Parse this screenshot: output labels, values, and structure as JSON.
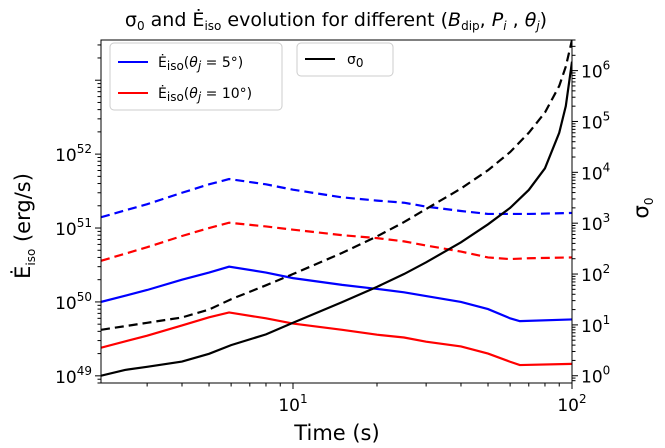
{
  "chart_data": {
    "type": "line",
    "title": "σ0 and Ėiso evolution for different (Bdip, Pi, θj)",
    "xlabel": "Time (s)",
    "ylabel_left": "Ėiso (erg/s)",
    "ylabel_right": "σ0",
    "x_scale": "log",
    "y_scale_left": "log",
    "y_scale_right": "log",
    "xlim": [
      2.05,
      100
    ],
    "ylim_left": [
      8e+48,
      3.5e+53
    ],
    "ylim_right": [
      0.72,
      4000000.0
    ],
    "x_ticks": [
      {
        "value": 10,
        "label": "10",
        "exp": "1"
      },
      {
        "value": 100,
        "label": "10",
        "exp": "2"
      }
    ],
    "y_ticks_left": [
      {
        "value": 1e+49,
        "label": "10",
        "exp": "49"
      },
      {
        "value": 1e+50,
        "label": "10",
        "exp": "50"
      },
      {
        "value": 1e+51,
        "label": "10",
        "exp": "51"
      },
      {
        "value": 1e+52,
        "label": "10",
        "exp": "52"
      }
    ],
    "y_ticks_right": [
      {
        "value": 1,
        "label": "10",
        "exp": "0"
      },
      {
        "value": 10,
        "label": "10",
        "exp": "1"
      },
      {
        "value": 100,
        "label": "10",
        "exp": "2"
      },
      {
        "value": 1000,
        "label": "10",
        "exp": "3"
      },
      {
        "value": 10000,
        "label": "10",
        "exp": "4"
      },
      {
        "value": 100000,
        "label": "10",
        "exp": "5"
      },
      {
        "value": 1000000,
        "label": "10",
        "exp": "6"
      }
    ],
    "legend_left": {
      "placement": "upper-left",
      "entries": [
        {
          "label": "Ėiso(θj = 5°)",
          "color": "#0000ff"
        },
        {
          "label": "Ėiso(θj = 10°)",
          "color": "#ff0000"
        }
      ]
    },
    "legend_right": {
      "placement": "upper-center",
      "entries": [
        {
          "label": "σ0",
          "color": "#000000"
        }
      ]
    },
    "series": [
      {
        "axis": "left",
        "color": "#0000ff",
        "dash": "dashed",
        "points": [
          [
            2.05,
            1.4e+51
          ],
          [
            3,
            2.1e+51
          ],
          [
            4,
            3e+51
          ],
          [
            5,
            3.9e+51
          ],
          [
            5.9,
            4.6e+51
          ],
          [
            8,
            3.9e+51
          ],
          [
            10,
            3.3e+51
          ],
          [
            15,
            2.6e+51
          ],
          [
            20,
            2.35e+51
          ],
          [
            25,
            2.2e+51
          ],
          [
            30,
            1.95e+51
          ],
          [
            40,
            1.7e+51
          ],
          [
            50,
            1.55e+51
          ],
          [
            60,
            1.55e+51
          ],
          [
            70,
            1.55e+51
          ],
          [
            100,
            1.6e+51
          ]
        ]
      },
      {
        "axis": "left",
        "color": "#ff0000",
        "dash": "dashed",
        "points": [
          [
            2.05,
            3.6e+50
          ],
          [
            3,
            5.5e+50
          ],
          [
            4,
            7.8e+50
          ],
          [
            5,
            1e+51
          ],
          [
            5.9,
            1.18e+51
          ],
          [
            8,
            1.05e+51
          ],
          [
            10,
            9.5e+50
          ],
          [
            15,
            8e+50
          ],
          [
            20,
            7.3e+50
          ],
          [
            25,
            6.6e+50
          ],
          [
            30,
            5.8e+50
          ],
          [
            40,
            4.8e+50
          ],
          [
            50,
            4e+50
          ],
          [
            60,
            3.8e+50
          ],
          [
            70,
            3.9e+50
          ],
          [
            100,
            4e+50
          ]
        ]
      },
      {
        "axis": "left",
        "color": "#0000ff",
        "dash": "solid",
        "points": [
          [
            2.05,
            1e+50
          ],
          [
            3,
            1.45e+50
          ],
          [
            4,
            2e+50
          ],
          [
            5,
            2.5e+50
          ],
          [
            5.9,
            3e+50
          ],
          [
            8,
            2.5e+50
          ],
          [
            10,
            2.1e+50
          ],
          [
            15,
            1.7e+50
          ],
          [
            20,
            1.5e+50
          ],
          [
            25,
            1.35e+50
          ],
          [
            30,
            1.2e+50
          ],
          [
            40,
            1e+50
          ],
          [
            50,
            8e+49
          ],
          [
            60,
            6e+49
          ],
          [
            65,
            5.5e+49
          ],
          [
            100,
            5.8e+49
          ]
        ]
      },
      {
        "axis": "left",
        "color": "#ff0000",
        "dash": "solid",
        "points": [
          [
            2.05,
            2.4e+49
          ],
          [
            3,
            3.5e+49
          ],
          [
            4,
            4.8e+49
          ],
          [
            5,
            6.2e+49
          ],
          [
            5.9,
            7.2e+49
          ],
          [
            8,
            6e+49
          ],
          [
            10,
            5.1e+49
          ],
          [
            15,
            4.2e+49
          ],
          [
            20,
            3.6e+49
          ],
          [
            25,
            3.3e+49
          ],
          [
            30,
            2.9e+49
          ],
          [
            40,
            2.5e+49
          ],
          [
            50,
            2e+49
          ],
          [
            60,
            1.55e+49
          ],
          [
            65,
            1.4e+49
          ],
          [
            100,
            1.45e+49
          ]
        ]
      },
      {
        "axis": "right",
        "color": "#000000",
        "dash": "solid",
        "points": [
          [
            2.05,
            1.0
          ],
          [
            2.5,
            1.3
          ],
          [
            3,
            1.5
          ],
          [
            4,
            1.9
          ],
          [
            5,
            2.7
          ],
          [
            6,
            4.0
          ],
          [
            8,
            6.5
          ],
          [
            10,
            11
          ],
          [
            15,
            28
          ],
          [
            20,
            56
          ],
          [
            25,
            100
          ],
          [
            30,
            170
          ],
          [
            40,
            420
          ],
          [
            50,
            950
          ],
          [
            60,
            2000
          ],
          [
            70,
            4500
          ],
          [
            80,
            12000
          ],
          [
            90,
            60000
          ],
          [
            95,
            200000
          ],
          [
            100,
            1500000
          ]
        ]
      },
      {
        "axis": "right",
        "color": "#000000",
        "dash": "dashed",
        "points": [
          [
            2.05,
            8
          ],
          [
            3,
            11
          ],
          [
            4,
            14
          ],
          [
            5,
            20
          ],
          [
            6,
            32
          ],
          [
            8,
            60
          ],
          [
            10,
            100
          ],
          [
            15,
            260
          ],
          [
            20,
            550
          ],
          [
            25,
            1050
          ],
          [
            30,
            1900
          ],
          [
            40,
            4800
          ],
          [
            50,
            11000
          ],
          [
            60,
            25000
          ],
          [
            70,
            60000
          ],
          [
            80,
            150000
          ],
          [
            90,
            500000
          ],
          [
            95,
            1200000
          ],
          [
            100,
            4000000
          ]
        ]
      }
    ]
  }
}
